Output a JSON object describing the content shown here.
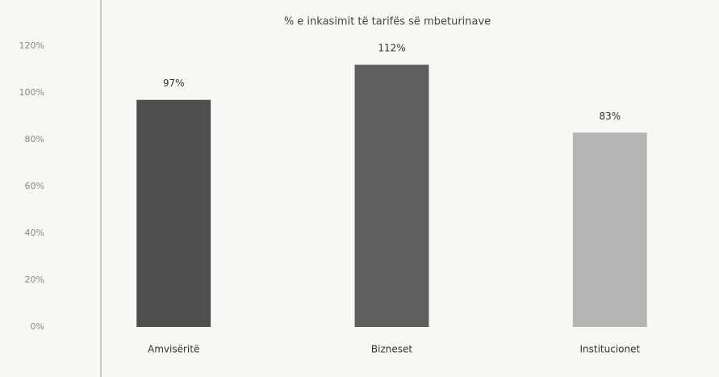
{
  "chart_data": {
    "type": "bar",
    "title": "% e inkasimit të tarifës së mbeturinave",
    "categories": [
      "Amvisëritë",
      "Bizneset",
      "Institucionet"
    ],
    "values": [
      97,
      112,
      83
    ],
    "value_labels": [
      "97%",
      "112%",
      "83%"
    ],
    "colors": [
      "#4f4f4f",
      "#5e5e5e",
      "#b5b5b5"
    ],
    "ylim": [
      0,
      120
    ],
    "yticks": [
      {
        "value": 0,
        "label": "0%"
      },
      {
        "value": 20,
        "label": "20%"
      },
      {
        "value": 40,
        "label": "40%"
      },
      {
        "value": 60,
        "label": "60%"
      },
      {
        "value": 80,
        "label": "80%"
      },
      {
        "value": 100,
        "label": "100%"
      },
      {
        "value": 120,
        "label": "120%"
      }
    ],
    "grid": false
  }
}
